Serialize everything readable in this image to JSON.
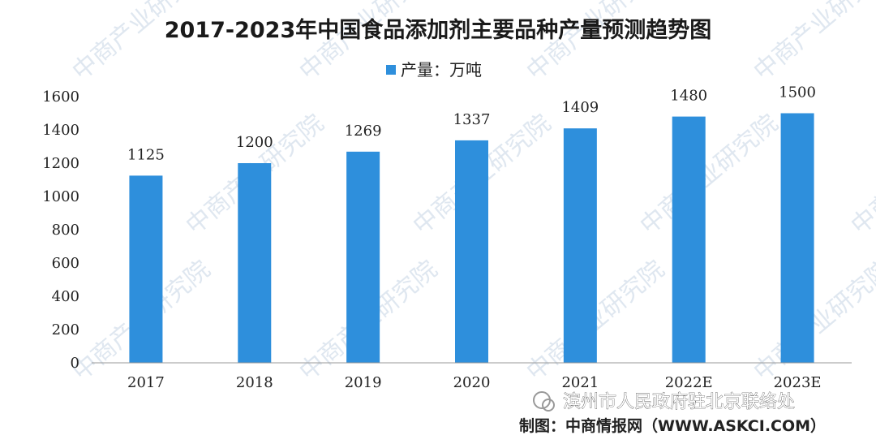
{
  "colors": {
    "bar": "#2e8fdc",
    "axis": "#999999",
    "watermark": "#dfe7f0"
  },
  "watermark_text": "中商产业研究院",
  "wechat_account": "滨州市人民政府驻北京联络处",
  "source": "制图：中商情报网（WWW.ASKCI.COM）",
  "chart_data": {
    "type": "bar",
    "title": "2017-2023年中国食品添加剂主要品种产量预测趋势图",
    "legend": "产量：万吨",
    "legend_position": "top-center",
    "categories": [
      "2017",
      "2018",
      "2019",
      "2020",
      "2021",
      "2022E",
      "2023E"
    ],
    "values": [
      1125,
      1200,
      1269,
      1337,
      1409,
      1480,
      1500
    ],
    "data_labels": [
      "1125",
      "1200",
      "1269",
      "1337",
      "1409",
      "1480",
      "1500"
    ],
    "yticks": [
      "0",
      "200",
      "400",
      "600",
      "800",
      "1000",
      "1200",
      "1400",
      "1600"
    ],
    "ylim": [
      0,
      1600
    ],
    "grid": false
  }
}
